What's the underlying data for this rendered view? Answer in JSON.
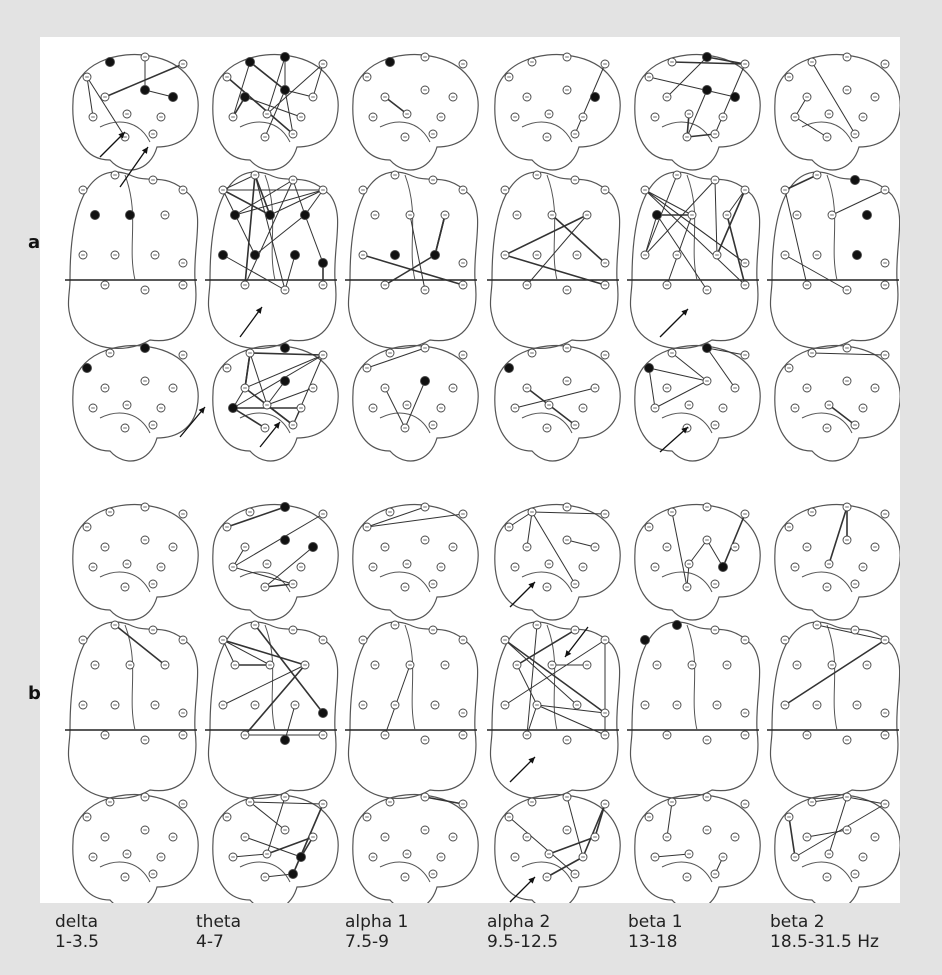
{
  "figure": {
    "groups": [
      {
        "id": "a",
        "label": "a"
      },
      {
        "id": "b",
        "label": "b"
      }
    ],
    "views": [
      "left",
      "top",
      "right"
    ],
    "bands": [
      {
        "name": "delta",
        "range": "1-3.5"
      },
      {
        "name": "theta",
        "range": "4-7"
      },
      {
        "name": "alpha 1",
        "range": "7.5-9"
      },
      {
        "name": "alpha 2",
        "range": "9.5-12.5"
      },
      {
        "name": "beta 1",
        "range": "13-18"
      },
      {
        "name": "beta 2",
        "range": "18.5-31.5 Hz"
      }
    ]
  },
  "colors": {
    "background": "#e3e3e3",
    "panel": "#ffffff",
    "outline": "#555555",
    "active_electrode": "#111111"
  }
}
